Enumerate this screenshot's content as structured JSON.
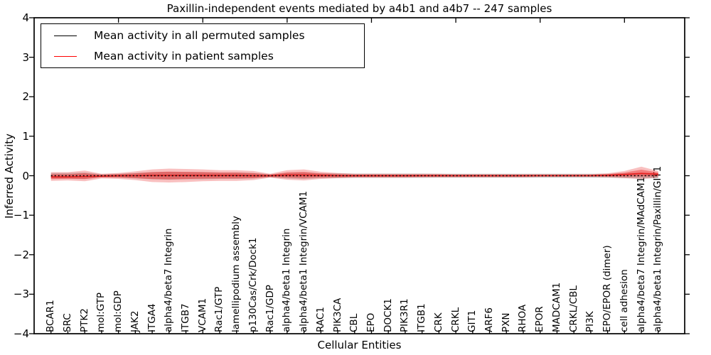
{
  "figure": {
    "title": "Paxillin-independent events mediated by a4b1 and a4b7 -- 247 samples",
    "xlabel": "Cellular Entities",
    "ylabel": "Inferred Activity"
  },
  "legend": {
    "items": [
      {
        "label": "Mean activity in all permuted samples",
        "color": "#000000"
      },
      {
        "label": "Mean activity in patient samples",
        "color": "#ff0000"
      }
    ]
  },
  "chart_data": {
    "type": "line",
    "title": "Paxillin-independent events mediated by a4b1 and a4b7 -- 247 samples",
    "xlabel": "Cellular Entities",
    "ylabel": "Inferred Activity",
    "ylim": [
      -4,
      4
    ],
    "yticks": [
      4,
      3,
      2,
      1,
      0,
      -1,
      -2,
      -3,
      -4
    ],
    "grid": false,
    "legend_position": "upper left",
    "categories": [
      "BCAR1",
      "SRC",
      "PTK2",
      "mol:GTP",
      "mol:GDP",
      "JAK2",
      "ITGA4",
      "alpha4/beta7 Integrin",
      "ITGB7",
      "VCAM1",
      "Rac1/GTP",
      "lamellipodium assembly",
      "p130Cas/Crk/Dock1",
      "Rac1/GDP",
      "alpha4/beta1 Integrin",
      "alpha4/beta1 Integrin/VCAM1",
      "RAC1",
      "PIK3CA",
      "CBL",
      "EPO",
      "DOCK1",
      "PIK3R1",
      "ITGB1",
      "CRK",
      "CRKL",
      "GIT1",
      "ARF6",
      "PXN",
      "RHOA",
      "EPOR",
      "MADCAM1",
      "CRKL/CBL",
      "PI3K",
      "EPO/EPOR (dimer)",
      "cell adhesion",
      "alpha4/beta7 Integrin/MAdCAM1",
      "alpha4/beta1 Integrin/Paxillin/GIT1"
    ],
    "series": [
      {
        "name": "Mean activity in all permuted samples",
        "color": "#000000",
        "style": "dotted",
        "values": [
          0,
          0,
          0,
          0,
          0,
          0,
          0,
          0,
          0,
          0,
          0,
          0,
          0,
          0,
          0,
          0,
          0,
          0,
          0,
          0,
          0,
          0,
          0,
          0,
          0,
          0,
          0,
          0,
          0,
          0,
          0,
          0,
          0,
          0,
          0,
          0,
          0
        ]
      },
      {
        "name": "Mean activity in patient samples",
        "color": "#e82020",
        "style": "solid",
        "values": [
          -0.03,
          -0.03,
          -0.02,
          -0.01,
          0,
          0,
          0.01,
          0.01,
          0.01,
          0.01,
          0.01,
          0.01,
          0,
          0,
          0.02,
          0.02,
          0.01,
          0,
          0,
          0,
          0,
          0,
          0,
          0,
          0,
          0,
          0,
          0,
          0,
          0,
          0,
          0,
          0,
          0.01,
          0.03,
          0.06,
          0.04
        ]
      }
    ],
    "bands": [
      {
        "name": "permuted-samples-std",
        "color": "rgba(128,128,128,0.40)",
        "upper": [
          0.07,
          0.07,
          0.08,
          0.04,
          0.05,
          0.07,
          0.09,
          0.1,
          0.09,
          0.09,
          0.08,
          0.08,
          0.07,
          0.04,
          0.07,
          0.08,
          0.06,
          0.06,
          0.055,
          0.055,
          0.055,
          0.055,
          0.055,
          0.05,
          0.05,
          0.05,
          0.05,
          0.05,
          0.05,
          0.05,
          0.05,
          0.05,
          0.05,
          0.05,
          0.06,
          0.07,
          0.06
        ],
        "lower": [
          -0.07,
          -0.07,
          -0.08,
          -0.04,
          -0.05,
          -0.07,
          -0.09,
          -0.1,
          -0.09,
          -0.09,
          -0.08,
          -0.08,
          -0.07,
          -0.04,
          -0.07,
          -0.08,
          -0.06,
          -0.06,
          -0.055,
          -0.055,
          -0.055,
          -0.055,
          -0.055,
          -0.05,
          -0.05,
          -0.05,
          -0.05,
          -0.05,
          -0.05,
          -0.05,
          -0.05,
          -0.05,
          -0.05,
          -0.05,
          -0.06,
          -0.07,
          -0.06
        ]
      },
      {
        "name": "patient-samples-std-outer",
        "color": "rgba(235,45,45,0.30)",
        "upper": [
          0.09,
          0.09,
          0.13,
          0.05,
          0.07,
          0.11,
          0.16,
          0.18,
          0.17,
          0.16,
          0.14,
          0.14,
          0.12,
          0.05,
          0.14,
          0.16,
          0.1,
          0.07,
          0.05,
          0.05,
          0.05,
          0.05,
          0.05,
          0.05,
          0.04,
          0.04,
          0.04,
          0.04,
          0.04,
          0.04,
          0.04,
          0.04,
          0.04,
          0.06,
          0.12,
          0.23,
          0.12
        ],
        "lower": [
          -0.13,
          -0.12,
          -0.14,
          -0.07,
          -0.08,
          -0.11,
          -0.16,
          -0.17,
          -0.16,
          -0.14,
          -0.13,
          -0.13,
          -0.11,
          -0.05,
          -0.1,
          -0.12,
          -0.08,
          -0.06,
          -0.05,
          -0.05,
          -0.05,
          -0.05,
          -0.04,
          -0.04,
          -0.04,
          -0.04,
          -0.04,
          -0.04,
          -0.04,
          -0.03,
          -0.03,
          -0.03,
          -0.03,
          -0.04,
          -0.06,
          -0.08,
          -0.05
        ]
      },
      {
        "name": "patient-samples-std-inner",
        "color": "rgba(235,45,45,0.45)",
        "inner_of": "patient-samples-std-outer",
        "scale": 0.55
      }
    ]
  }
}
